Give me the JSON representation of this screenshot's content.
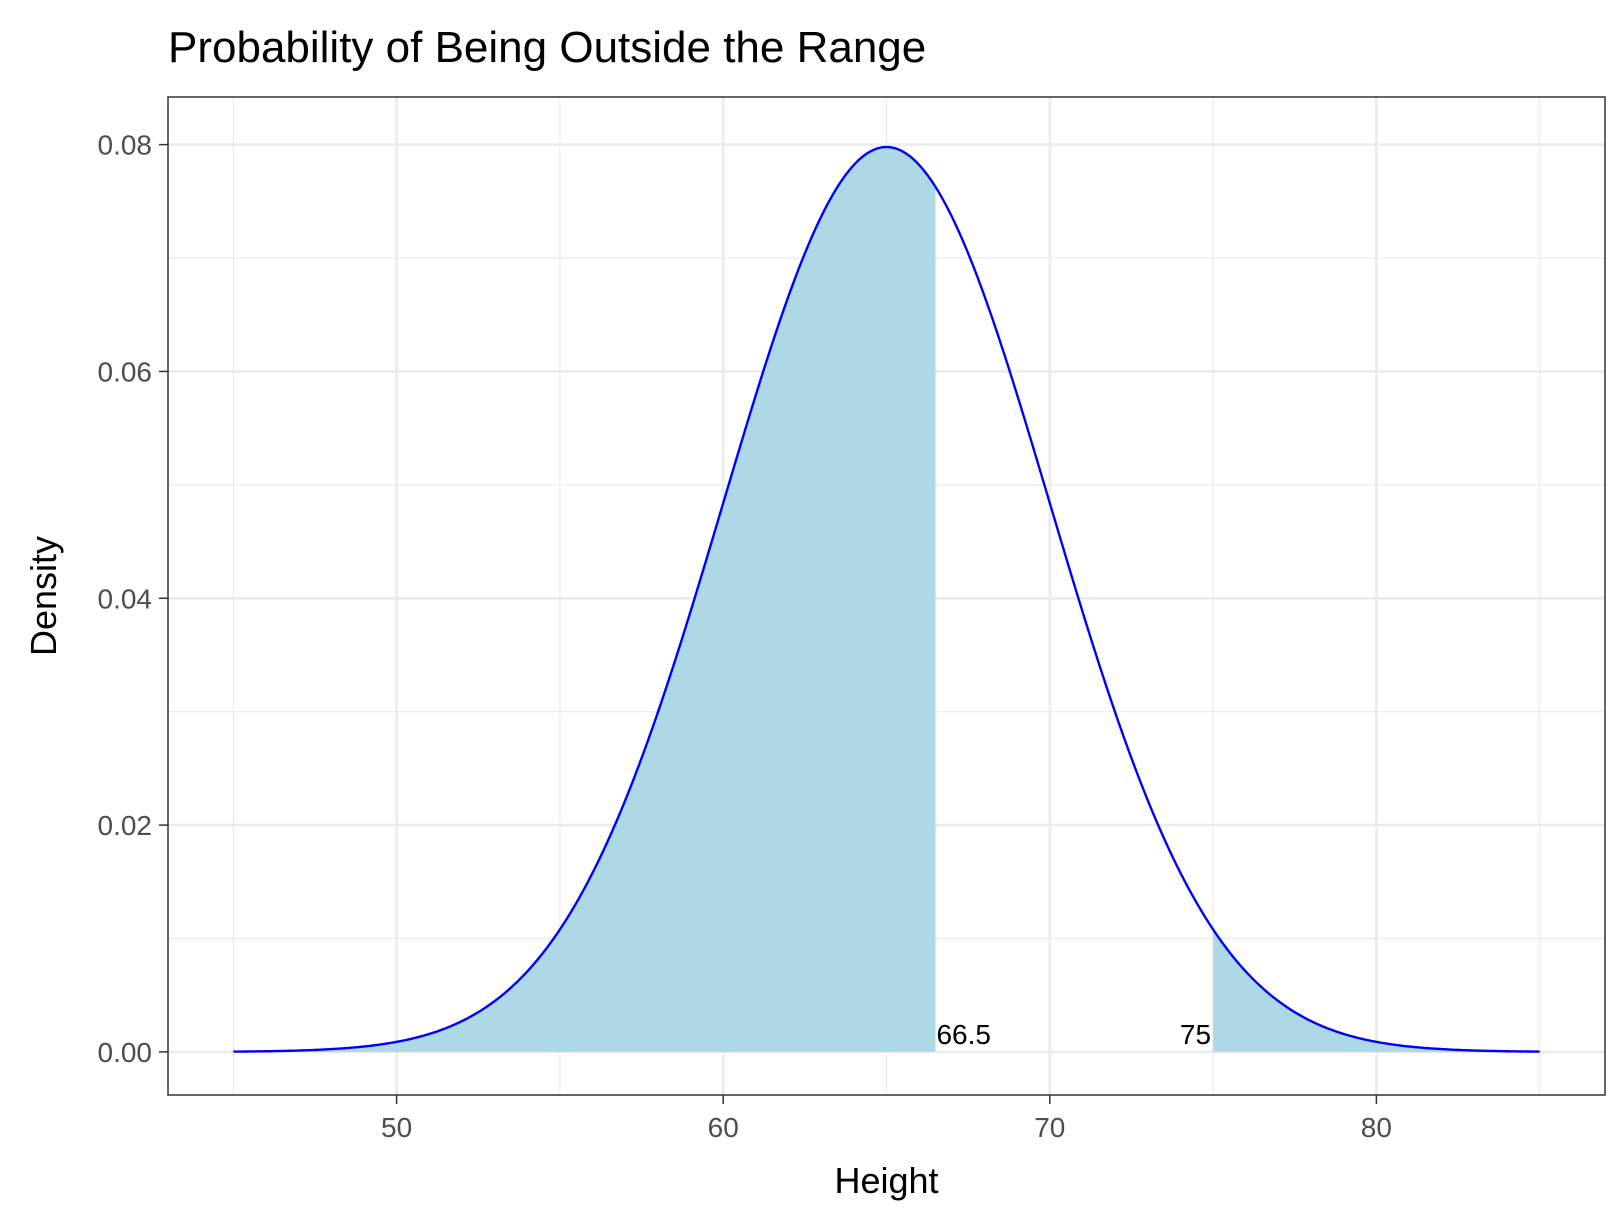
{
  "chart_data": {
    "type": "area",
    "title": "Probability of Being Outside the Range",
    "xlabel": "Height",
    "ylabel": "Density",
    "xlim": [
      43,
      87
    ],
    "ylim": [
      -0.0038,
      0.0842
    ],
    "x_ticks": [
      50,
      60,
      70,
      80
    ],
    "y_ticks": [
      0.0,
      0.02,
      0.04,
      0.06,
      0.08
    ],
    "y_tick_labels": [
      "0.00",
      "0.02",
      "0.04",
      "0.06",
      "0.08"
    ],
    "x_minor_ticks": [
      45,
      55,
      65,
      75,
      85
    ],
    "y_minor_ticks": [
      0.01,
      0.03,
      0.05,
      0.07
    ],
    "grid": true,
    "distribution": {
      "name": "normal",
      "mean": 65,
      "sd": 5,
      "x_range": [
        45,
        85
      ]
    },
    "curve_color": "#0000ff",
    "fill_color": "#add8e6",
    "shaded_regions": [
      {
        "from": 45,
        "to": 66.5
      },
      {
        "from": 75,
        "to": 85
      }
    ],
    "annotations": [
      {
        "text": "66.5",
        "x": 66.5,
        "y": 0,
        "anchor": "start"
      },
      {
        "text": "75",
        "x": 75,
        "y": 0,
        "anchor": "end"
      }
    ]
  }
}
